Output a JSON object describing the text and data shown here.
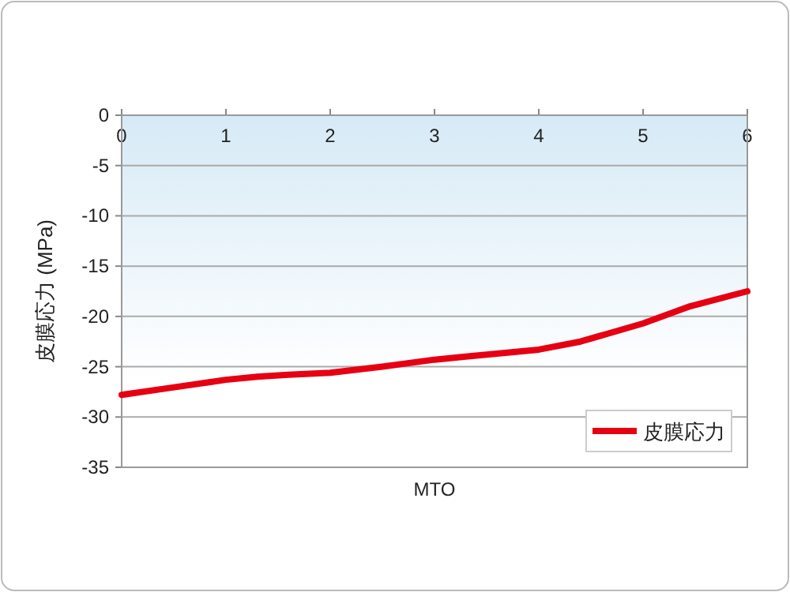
{
  "chart_data": {
    "type": "line",
    "xlabel": "MTO",
    "ylabel": "皮膜応力 (MPa)",
    "xlim": [
      0,
      6
    ],
    "ylim": [
      -35,
      0
    ],
    "xticks": [
      0,
      1,
      2,
      3,
      4,
      5,
      6
    ],
    "yticks": [
      0,
      -5,
      -10,
      -15,
      -20,
      -25,
      -30,
      -35
    ],
    "grid": "y",
    "legend": "bottom right",
    "marker": "none",
    "line_style": "solid",
    "series": [
      {
        "name": "皮膜応力",
        "color": "#e60012",
        "x": [
          0,
          0.4,
          0.8,
          1.0,
          1.3,
          1.6,
          2.0,
          2.5,
          3.0,
          3.3,
          3.5,
          4.0,
          4.4,
          5.0,
          5.45,
          6.0
        ],
        "values": [
          -27.8,
          -27.2,
          -26.6,
          -26.3,
          -26.0,
          -25.8,
          -25.6,
          -25.0,
          -24.3,
          -24.0,
          -23.8,
          -23.3,
          -22.5,
          -20.7,
          -19.0,
          -17.5
        ]
      }
    ]
  }
}
